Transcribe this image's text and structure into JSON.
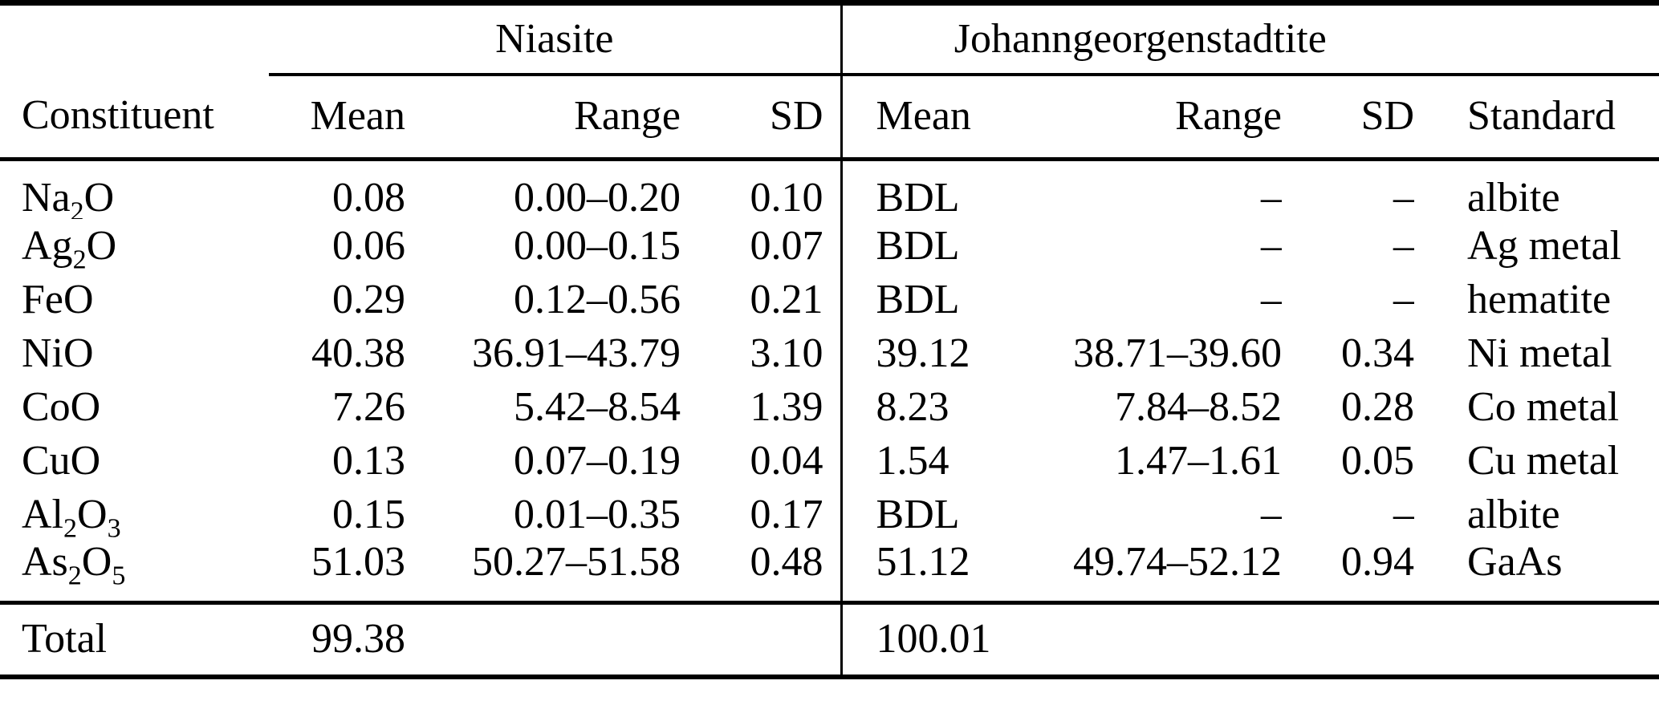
{
  "table": {
    "spanners": {
      "niasite": "Niasite",
      "johanngeorgenstadtite": "Johanngeorgenstadtite"
    },
    "columns": {
      "constituent": "Constituent",
      "niasite_mean": "Mean",
      "niasite_range": "Range",
      "niasite_sd": "SD",
      "johanngeorgenstadtite_mean": "Mean",
      "johanngeorgenstadtite_range": "Range",
      "johanngeorgenstadtite_sd": "SD",
      "standard": "Standard"
    },
    "rows": [
      {
        "constituent": [
          {
            "text": "Na"
          },
          {
            "text": "2",
            "sub": true
          },
          {
            "text": "O"
          }
        ],
        "niasite": {
          "mean": "0.08",
          "range": "0.00–0.20",
          "sd": "0.10"
        },
        "johanngeorgenstadtite": {
          "mean": "BDL",
          "range": "–",
          "sd": "–"
        },
        "standard": "albite"
      },
      {
        "constituent": [
          {
            "text": "Ag"
          },
          {
            "text": "2",
            "sub": true
          },
          {
            "text": "O"
          }
        ],
        "niasite": {
          "mean": "0.06",
          "range": "0.00–0.15",
          "sd": "0.07"
        },
        "johanngeorgenstadtite": {
          "mean": "BDL",
          "range": "–",
          "sd": "–"
        },
        "standard": "Ag metal"
      },
      {
        "constituent": [
          {
            "text": "FeO"
          }
        ],
        "niasite": {
          "mean": "0.29",
          "range": "0.12–0.56",
          "sd": "0.21"
        },
        "johanngeorgenstadtite": {
          "mean": "BDL",
          "range": "–",
          "sd": "–"
        },
        "standard": "hematite"
      },
      {
        "constituent": [
          {
            "text": "NiO"
          }
        ],
        "niasite": {
          "mean": "40.38",
          "range": "36.91–43.79",
          "sd": "3.10"
        },
        "johanngeorgenstadtite": {
          "mean": "39.12",
          "range": "38.71–39.60",
          "sd": "0.34"
        },
        "standard": "Ni metal"
      },
      {
        "constituent": [
          {
            "text": "CoO"
          }
        ],
        "niasite": {
          "mean": "7.26",
          "range": "5.42–8.54",
          "sd": "1.39"
        },
        "johanngeorgenstadtite": {
          "mean": "8.23",
          "range": "7.84–8.52",
          "sd": "0.28"
        },
        "standard": "Co metal"
      },
      {
        "constituent": [
          {
            "text": "CuO"
          }
        ],
        "niasite": {
          "mean": "0.13",
          "range": "0.07–0.19",
          "sd": "0.04"
        },
        "johanngeorgenstadtite": {
          "mean": "1.54",
          "range": "1.47–1.61",
          "sd": "0.05"
        },
        "standard": "Cu metal"
      },
      {
        "constituent": [
          {
            "text": "Al"
          },
          {
            "text": "2",
            "sub": true
          },
          {
            "text": "O"
          },
          {
            "text": "3",
            "sub": true
          }
        ],
        "niasite": {
          "mean": "0.15",
          "range": "0.01–0.35",
          "sd": "0.17"
        },
        "johanngeorgenstadtite": {
          "mean": "BDL",
          "range": "–",
          "sd": "–"
        },
        "standard": "albite"
      },
      {
        "constituent": [
          {
            "text": "As"
          },
          {
            "text": "2",
            "sub": true
          },
          {
            "text": "O"
          },
          {
            "text": "5",
            "sub": true
          }
        ],
        "niasite": {
          "mean": "51.03",
          "range": "50.27–51.58",
          "sd": "0.48"
        },
        "johanngeorgenstadtite": {
          "mean": "51.12",
          "range": "49.74–52.12",
          "sd": "0.94"
        },
        "standard": "GaAs"
      }
    ],
    "total": {
      "label": "Total",
      "niasite_total": "99.38",
      "johanngeorgenstadtite_total": "100.01"
    }
  }
}
